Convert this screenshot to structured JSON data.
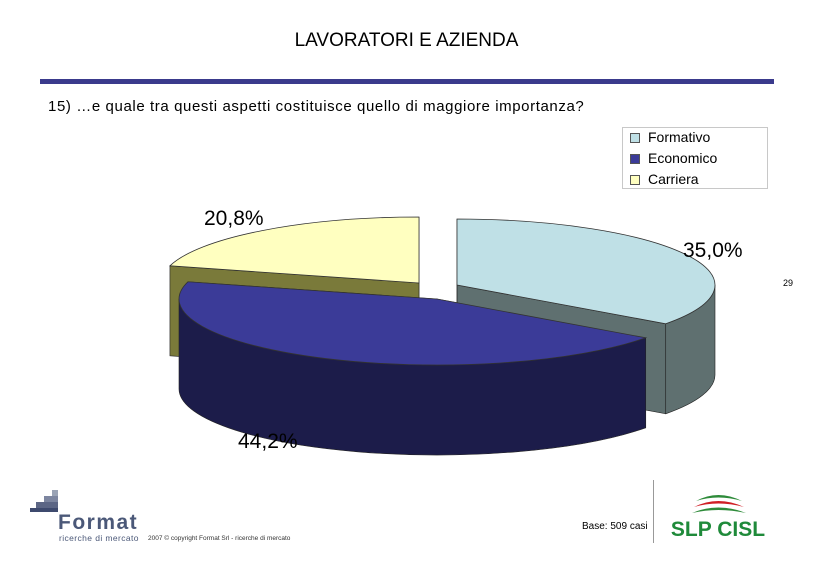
{
  "header": {
    "title": "LAVORATORI E AZIENDA",
    "question": "15) …e quale tra questi aspetti costituisce quello di maggiore importanza?"
  },
  "colors": {
    "rule": "#3a3a8c",
    "formativo": "#bfe0e6",
    "economico": "#3b3b98",
    "carriera": "#ffffc0"
  },
  "chart_data": {
    "type": "pie",
    "title": "",
    "categories": [
      "Formativo",
      "Economico",
      "Carriera"
    ],
    "values": [
      35.0,
      44.2,
      20.8
    ],
    "labels": [
      "35,0%",
      "44,2%",
      "20,8%"
    ],
    "legend": {
      "placement": "top-right",
      "entries": [
        "Formativo",
        "Economico",
        "Carriera"
      ]
    }
  },
  "footer": {
    "page_number": "29",
    "copyright": "2007 © copyright Format Srl - ricerche di mercato",
    "base": "Base: 509 casi",
    "format_logo_text": "Format",
    "format_logo_subtext": "ricerche di mercato",
    "slp_logo_text": "SLP CISL"
  }
}
